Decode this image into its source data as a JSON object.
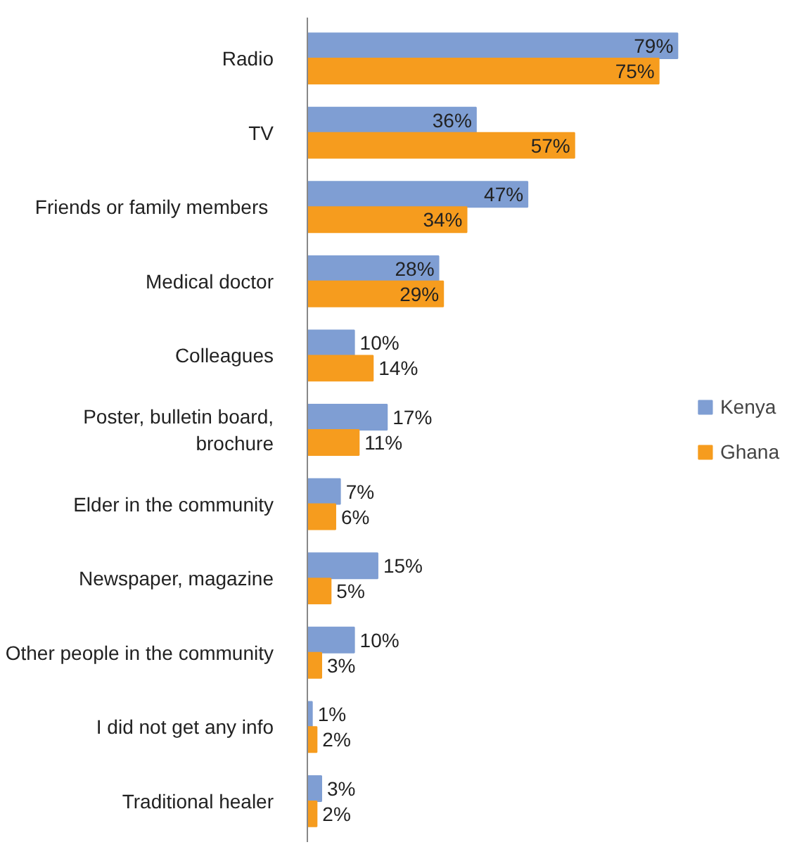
{
  "chart_data": {
    "type": "bar",
    "orientation": "horizontal",
    "categories": [
      "Radio",
      "TV",
      "Friends or family  members",
      "Medical doctor",
      "Colleagues",
      "Poster, bulletin board, brochure",
      "Elder in the community",
      "Newspaper, magazine",
      "Other people in the community",
      "I did not get any info",
      "Traditional healer"
    ],
    "series": [
      {
        "name": "Kenya",
        "color": "#7f9ed3",
        "values": [
          79,
          36,
          47,
          28,
          10,
          17,
          7,
          15,
          10,
          1,
          3
        ],
        "value_labels": [
          "79%",
          "36%",
          "47%",
          "28%",
          "10%",
          "17%",
          "7%",
          "15%",
          "10%",
          "1%",
          "3%"
        ]
      },
      {
        "name": "Ghana",
        "color": "#f69c1e",
        "values": [
          75,
          57,
          34,
          29,
          14,
          11,
          6,
          5,
          3,
          2,
          2
        ],
        "value_labels": [
          "75%",
          "57%",
          "34%",
          "29%",
          "14%",
          "11%",
          "6%",
          "5%",
          "3%",
          "2%",
          "2%"
        ]
      }
    ],
    "legend": "right",
    "tick_labels": "y",
    "grid": false
  }
}
